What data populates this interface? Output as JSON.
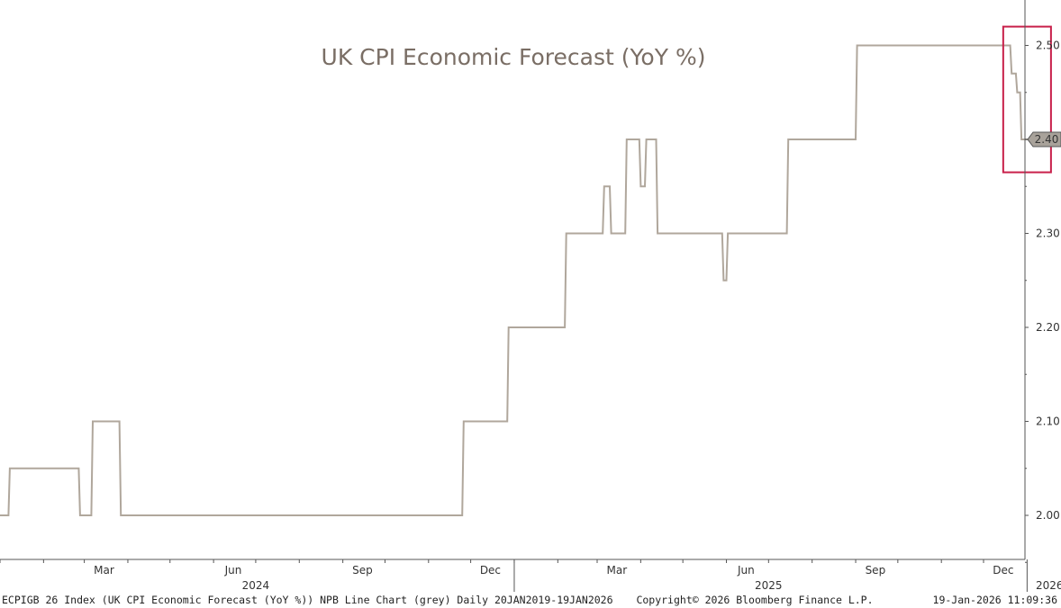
{
  "chart_data": {
    "type": "line",
    "title": "UK CPI Economic Forecast (YoY %)",
    "ylim": [
      1.95,
      2.55
    ],
    "yticks": [
      "2.00",
      "2.10",
      "2.20",
      "2.30",
      "2.40",
      "2.50"
    ],
    "last_value_label": "2.40",
    "x_month_labels": [
      "Mar",
      "Jun",
      "Sep",
      "Dec",
      "Mar",
      "Jun",
      "Sep",
      "Dec"
    ],
    "x_year_labels": [
      "2024",
      "2025",
      "2026"
    ],
    "series": [
      {
        "color": "#b0a79c",
        "x": [
          "2024-01-01",
          "2024-01-07",
          "2024-01-08",
          "2024-02-26",
          "2024-02-27",
          "2024-03-06",
          "2024-03-07",
          "2024-03-26",
          "2024-03-27",
          "2024-11-25",
          "2024-11-26",
          "2024-12-27",
          "2024-12-28",
          "2025-02-06",
          "2025-02-07",
          "2025-03-05",
          "2025-03-06",
          "2025-03-10",
          "2025-03-11",
          "2025-03-21",
          "2025-03-22",
          "2025-03-31",
          "2025-04-01",
          "2025-04-04",
          "2025-04-05",
          "2025-04-12",
          "2025-04-13",
          "2025-05-29",
          "2025-05-30",
          "2025-06-01",
          "2025-06-02",
          "2025-07-14",
          "2025-07-15",
          "2025-09-01",
          "2025-09-02",
          "2025-12-20",
          "2025-12-21",
          "2025-12-24",
          "2025-12-25",
          "2025-12-27",
          "2025-12-28",
          "2026-01-09"
        ],
        "values": [
          2.0,
          2.0,
          2.05,
          2.05,
          2.0,
          2.0,
          2.1,
          2.1,
          2.0,
          2.0,
          2.1,
          2.1,
          2.2,
          2.2,
          2.3,
          2.3,
          2.35,
          2.35,
          2.3,
          2.3,
          2.4,
          2.4,
          2.35,
          2.35,
          2.4,
          2.4,
          2.3,
          2.3,
          2.25,
          2.25,
          2.3,
          2.3,
          2.4,
          2.4,
          2.5,
          2.5,
          2.47,
          2.47,
          2.45,
          2.45,
          2.4,
          2.4
        ]
      }
    ],
    "highlight_box": {
      "color": "#c8204a",
      "x_start": "2025-12-15",
      "x_end": "2026-01-18",
      "y_low": 2.365,
      "y_high": 2.52
    }
  },
  "footer": {
    "left": "ECPIGB 26 Index (UK CPI Economic Forecast (YoY %)) NPB Line Chart (grey) Daily 20JAN2019-19JAN2026",
    "center": "Copyright© 2026 Bloomberg Finance L.P.",
    "right": "19-Jan-2026 11:09:36"
  }
}
